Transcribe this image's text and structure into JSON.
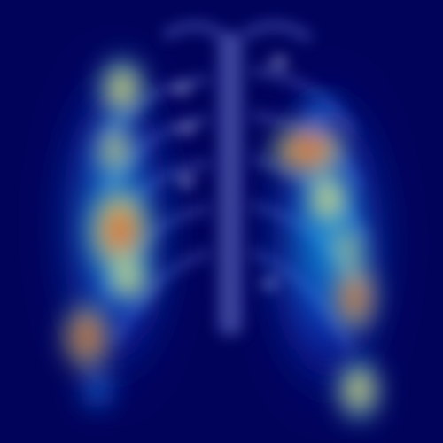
{
  "image": {
    "kind": "chest radiograph with attention heatmap overlay",
    "background_color": "#02045c",
    "colormap": [
      "#00007a",
      "#1f4cff",
      "#00e5ff",
      "#f7f36b",
      "#ff8f2a",
      "#ff2b1e"
    ],
    "overlay_visible": true
  },
  "heatmap": {
    "regions": [
      {
        "name": "right-lung-upper-hotspot",
        "intensity": 0.62
      },
      {
        "name": "right-lung-middle-hotspot",
        "intensity": 0.95
      },
      {
        "name": "right-lung-lower-hotspot",
        "intensity": 0.82
      },
      {
        "name": "left-lung-upper-hotspot",
        "intensity": 0.88
      },
      {
        "name": "left-lung-middle-hotspot",
        "intensity": 0.72
      },
      {
        "name": "left-lung-lower-hotspot",
        "intensity": 0.76
      }
    ]
  }
}
